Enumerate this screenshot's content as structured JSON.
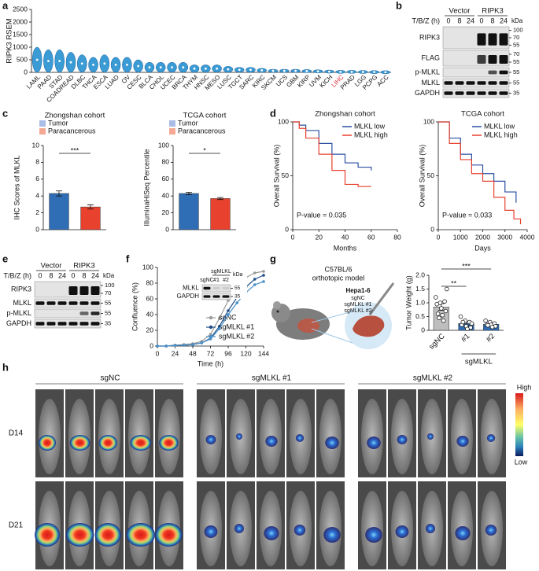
{
  "panel_labels": [
    "a",
    "b",
    "c",
    "d",
    "e",
    "f",
    "g",
    "h"
  ],
  "chart_data": [
    {
      "type": "violin",
      "ylabel": "RIPK3 RSEM",
      "categories": [
        "LAML",
        "PAAD",
        "STAD",
        "COADREAD",
        "DLBC",
        "THCA",
        "ESCA",
        "LUAD",
        "OV",
        "CESC",
        "BLCA",
        "CHOL",
        "UCEC",
        "BRCA",
        "THYM",
        "HNSC",
        "MESO",
        "LUSC",
        "TGCT",
        "SARC",
        "KIRC",
        "SKCM",
        "UCS",
        "GBM",
        "KIRP",
        "UVM",
        "KICH",
        "LIHC",
        "PRAD",
        "LGG",
        "PCPG",
        "ACC"
      ],
      "values": [
        500,
        450,
        450,
        400,
        350,
        300,
        350,
        300,
        300,
        250,
        200,
        200,
        200,
        200,
        150,
        150,
        150,
        120,
        100,
        100,
        80,
        60,
        60,
        60,
        50,
        40,
        30,
        20,
        20,
        15,
        10,
        5
      ],
      "color": "#3a9bd5",
      "highlight": "LIHC",
      "highlight_color": "#e8333a",
      "ylim": [
        0,
        2500
      ],
      "yticks": [
        0,
        500,
        1000,
        1500,
        2000,
        2500
      ]
    },
    {
      "type": "bar",
      "title": "Zhongshan cohort",
      "ylabel": "IHC Scores of MLKL",
      "categories": [
        "Tumor",
        "Paracancerous"
      ],
      "values": [
        4.3,
        2.7
      ],
      "errors": [
        0.3,
        0.25
      ],
      "colors": [
        "#2f6db5",
        "#e8412e"
      ],
      "legend_colors": [
        "#a9bde6",
        "#f4a892"
      ],
      "significance": "***",
      "ylim": [
        0,
        10
      ],
      "yticks": [
        0,
        2,
        4,
        6,
        8,
        10
      ]
    },
    {
      "type": "bar",
      "title": "TCGA cohort",
      "ylabel": "IlluminaHiSeq Percentile",
      "categories": [
        "Tumor",
        "Paracancerous"
      ],
      "values": [
        43,
        37
      ],
      "errors": [
        1.5,
        1.2
      ],
      "colors": [
        "#2f6db5",
        "#e8412e"
      ],
      "legend_colors": [
        "#a9bde6",
        "#f4a892"
      ],
      "significance": "*",
      "ylim": [
        0,
        100
      ],
      "yticks": [
        0,
        20,
        40,
        60,
        80,
        100
      ]
    },
    {
      "type": "step",
      "title": "Zhongshan cohort",
      "xlabel": "Months",
      "ylabel": "Overall Survival (%)",
      "annotation": "P-value = 0.035",
      "xlim": [
        0,
        80
      ],
      "xticks": [
        0,
        20,
        40,
        60,
        80
      ],
      "ylim": [
        0,
        100
      ],
      "yticks": [
        0,
        50,
        100
      ],
      "series": [
        {
          "name": "MLKL low",
          "color": "#2b4ea2",
          "x": [
            0,
            5,
            10,
            20,
            30,
            40,
            50,
            60
          ],
          "values": [
            100,
            97,
            92,
            80,
            70,
            62,
            58,
            55
          ]
        },
        {
          "name": "MLKL high",
          "color": "#e8412e",
          "x": [
            0,
            5,
            10,
            20,
            30,
            40,
            50,
            60
          ],
          "values": [
            100,
            94,
            85,
            70,
            55,
            42,
            40,
            40
          ]
        }
      ]
    },
    {
      "type": "step",
      "title": "TCGA cohort",
      "xlabel": "Days",
      "ylabel": "Overall Survival (%)",
      "annotation": "P-value = 0.033",
      "xlim": [
        0,
        4000
      ],
      "xticks": [
        0,
        1000,
        2000,
        3000,
        4000
      ],
      "ylim": [
        0,
        100
      ],
      "yticks": [
        0,
        50,
        100
      ],
      "series": [
        {
          "name": "MLKL low",
          "color": "#2b4ea2",
          "x": [
            0,
            500,
            1000,
            1500,
            2000,
            2500,
            3000,
            3500
          ],
          "values": [
            100,
            85,
            70,
            60,
            52,
            45,
            35,
            25
          ]
        },
        {
          "name": "MLKL high",
          "color": "#e8412e",
          "x": [
            0,
            500,
            1000,
            1500,
            2000,
            2500,
            3000,
            3400,
            3700
          ],
          "values": [
            100,
            80,
            65,
            52,
            45,
            30,
            18,
            10,
            5
          ]
        }
      ]
    },
    {
      "type": "line",
      "xlabel": "Time (h)",
      "ylabel": "Confluence (%)",
      "xlim": [
        0,
        144
      ],
      "xticks": [
        0,
        24,
        48,
        72,
        96,
        120,
        144
      ],
      "ylim": [
        0,
        100
      ],
      "yticks": [
        0,
        20,
        40,
        60,
        80,
        100
      ],
      "x": [
        0,
        12,
        24,
        36,
        48,
        60,
        72,
        84,
        96,
        108,
        120,
        132,
        144
      ],
      "series": [
        {
          "name": "sgNC",
          "color": "#9a9a9a",
          "values": [
            0,
            0,
            1,
            2,
            3,
            6,
            15,
            35,
            58,
            75,
            87,
            93,
            95
          ]
        },
        {
          "name": "sgMLKL #1",
          "color": "#1f4e89",
          "values": [
            0,
            0,
            1,
            1,
            2,
            4,
            10,
            25,
            45,
            62,
            75,
            85,
            90
          ]
        },
        {
          "name": "sgMLKL #2",
          "color": "#4a90c8",
          "values": [
            0,
            0,
            1,
            1,
            2,
            4,
            9,
            22,
            40,
            55,
            68,
            78,
            82
          ]
        }
      ]
    },
    {
      "type": "bar",
      "ylabel": "Tumor Weight (g)",
      "categories": [
        "sgNC",
        "#1",
        "#2"
      ],
      "group_label": "sgMLKL",
      "values": [
        0.85,
        0.25,
        0.22
      ],
      "errors": [
        0.12,
        0.07,
        0.04
      ],
      "colors": [
        "#bdbdbd",
        "#2f6db5",
        "#2f6db5"
      ],
      "points": [
        [
          1.2,
          1.0,
          1.05,
          0.95,
          0.8,
          0.7,
          0.6,
          0.55,
          1.5,
          0.45,
          0.35
        ],
        [
          0.5,
          0.35,
          0.3,
          0.2,
          0.15,
          0.1,
          0.3,
          0.05,
          0.25
        ],
        [
          0.35,
          0.3,
          0.25,
          0.2,
          0.2,
          0.15,
          0.18,
          0.12
        ]
      ],
      "significance": [
        "**",
        "***"
      ],
      "ylim": [
        0,
        2
      ],
      "yticks": [
        0,
        0.5,
        {
          "value": 1,
          "label": "1.0"
        },
        1.5,
        {
          "value": 2,
          "label": "2.0"
        }
      ]
    }
  ],
  "blots": {
    "b": {
      "groups": [
        "Vector",
        "RIPK3"
      ],
      "time_label": "T/B/Z (h)",
      "times": [
        "0",
        "8",
        "24",
        "0",
        "8",
        "24"
      ],
      "kda_label": "kDa",
      "rows": [
        {
          "name": "RIPK3",
          "kda": [
            100,
            70,
            55
          ]
        },
        {
          "name": "FLAG",
          "kda": [
            70,
            55
          ]
        },
        {
          "name": "p-MLKL",
          "kda": [
            55
          ]
        },
        {
          "name": "MLKL",
          "kda": [
            55
          ]
        },
        {
          "name": "GAPDH",
          "kda": [
            35
          ]
        }
      ]
    },
    "e": {
      "groups": [
        "Vector",
        "RIPK3"
      ],
      "time_label": "T/B/Z (h)",
      "times": [
        "0",
        "8",
        "24",
        "0",
        "8",
        "24"
      ],
      "kda_label": "kDa",
      "rows": [
        {
          "name": "RIPK3",
          "kda": [
            100,
            70
          ]
        },
        {
          "name": "MLKL",
          "kda": [
            55
          ]
        },
        {
          "name": "p-MLKL",
          "kda": [
            55
          ]
        },
        {
          "name": "GAPDH",
          "kda": [
            35
          ]
        }
      ]
    },
    "f_inset": {
      "lanes": [
        "sgNC",
        "#1",
        "#2"
      ],
      "group_label": "sgMLKL",
      "kda_label": "kDa",
      "rows": [
        {
          "name": "MLKL",
          "kda": [
            55
          ]
        },
        {
          "name": "GAPDH",
          "kda": [
            35
          ]
        }
      ]
    }
  },
  "model": {
    "title": "C57BL/6",
    "subtitle": "orthotopic model",
    "cell_line": "Hepa1-6",
    "constructs": [
      "sgNC",
      "sgMLKL #1",
      "sgMLKL #2"
    ]
  },
  "imaging": {
    "groups": [
      "sgNC",
      "sgMLKL #1",
      "sgMLKL #2"
    ],
    "days": [
      "D14",
      "D21"
    ],
    "scale_high": "High",
    "scale_low": "Low"
  }
}
